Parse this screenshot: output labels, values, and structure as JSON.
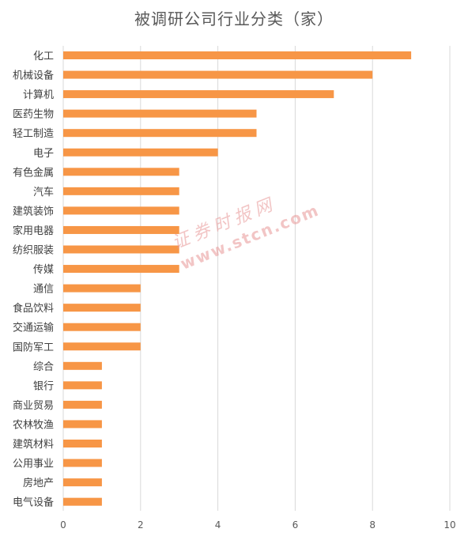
{
  "chart_data": {
    "type": "bar",
    "orientation": "horizontal",
    "title": "被调研公司行业分类（家）",
    "categories": [
      "化工",
      "机械设备",
      "计算机",
      "医药生物",
      "轻工制造",
      "电子",
      "有色金属",
      "汽车",
      "建筑装饰",
      "家用电器",
      "纺织服装",
      "传媒",
      "通信",
      "食品饮料",
      "交通运输",
      "国防军工",
      "综合",
      "银行",
      "商业贸易",
      "农林牧渔",
      "建筑材料",
      "公用事业",
      "房地产",
      "电气设备"
    ],
    "values": [
      9,
      8,
      7,
      5,
      5,
      4,
      3,
      3,
      3,
      3,
      3,
      3,
      2,
      2,
      2,
      2,
      1,
      1,
      1,
      1,
      1,
      1,
      1,
      1
    ],
    "xlim": [
      0,
      10
    ],
    "xticks": [
      "0",
      "2",
      "4",
      "6",
      "8",
      "10"
    ],
    "grid": true,
    "bar_color": "#F79646"
  },
  "watermark": {
    "text_cn": "证券时报网",
    "text_url": "www.stcn.com"
  }
}
